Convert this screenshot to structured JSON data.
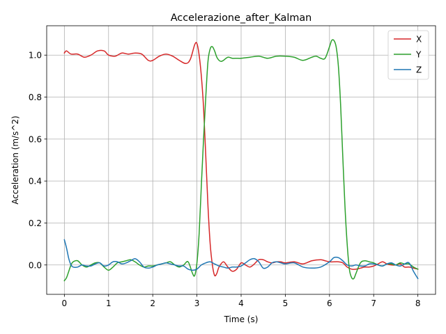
{
  "chart_data": {
    "type": "line",
    "title": "Accelerazione_after_Kalman",
    "xlabel": "Time (s)",
    "ylabel": "Acceleration (m/s^2)",
    "xlim": [
      -0.4,
      8.4
    ],
    "ylim": [
      -0.14,
      1.14
    ],
    "xticks": [
      0,
      1,
      2,
      3,
      4,
      5,
      6,
      7,
      8
    ],
    "xtick_labels": [
      "0",
      "1",
      "2",
      "3",
      "4",
      "5",
      "6",
      "7",
      "8"
    ],
    "yticks": [
      0.0,
      0.2,
      0.4,
      0.6,
      0.8,
      1.0
    ],
    "ytick_labels": [
      "0.0",
      "0.2",
      "0.4",
      "0.6",
      "0.8",
      "1.0"
    ],
    "grid": true,
    "legend_position": "upper right",
    "series": [
      {
        "name": "X",
        "color": "#d62728",
        "x": [
          0,
          0.05,
          0.15,
          0.3,
          0.45,
          0.6,
          0.75,
          0.9,
          1.0,
          1.15,
          1.3,
          1.45,
          1.6,
          1.75,
          1.9,
          2.0,
          2.15,
          2.3,
          2.45,
          2.6,
          2.75,
          2.85,
          2.95,
          3.0,
          3.05,
          3.1,
          3.15,
          3.2,
          3.25,
          3.3,
          3.35,
          3.4,
          3.45,
          3.5,
          3.6,
          3.7,
          3.8,
          3.9,
          4.0,
          4.1,
          4.2,
          4.3,
          4.4,
          4.5,
          4.6,
          4.7,
          4.8,
          4.9,
          5.0,
          5.2,
          5.4,
          5.6,
          5.8,
          5.9,
          6.0,
          6.1,
          6.2,
          6.3,
          6.4,
          6.5,
          6.6,
          6.7,
          6.8,
          6.9,
          7.0,
          7.1,
          7.2,
          7.3,
          7.4,
          7.5,
          7.6,
          7.7,
          7.8,
          7.9,
          8.0
        ],
        "y": [
          1.01,
          1.02,
          1.005,
          1.005,
          0.99,
          1.0,
          1.02,
          1.02,
          1.0,
          0.995,
          1.01,
          1.005,
          1.01,
          1.005,
          0.975,
          0.975,
          0.995,
          1.005,
          0.995,
          0.975,
          0.96,
          0.98,
          1.05,
          1.055,
          1.0,
          0.9,
          0.75,
          0.52,
          0.28,
          0.1,
          0.0,
          -0.05,
          -0.04,
          -0.01,
          0.015,
          -0.01,
          -0.03,
          -0.02,
          0.01,
          0.0,
          -0.01,
          0.005,
          0.025,
          0.025,
          0.015,
          0.01,
          0.015,
          0.015,
          0.01,
          0.015,
          0.005,
          0.02,
          0.025,
          0.02,
          0.015,
          0.015,
          0.015,
          0.01,
          -0.01,
          -0.02,
          -0.02,
          -0.015,
          -0.01,
          -0.01,
          -0.005,
          0.005,
          0.015,
          0.005,
          0.0,
          0.0,
          0.005,
          -0.01,
          -0.01,
          -0.015,
          -0.02
        ]
      },
      {
        "name": "Y",
        "color": "#2ca02c",
        "x": [
          0,
          0.05,
          0.1,
          0.15,
          0.2,
          0.3,
          0.4,
          0.5,
          0.6,
          0.7,
          0.8,
          0.9,
          1.0,
          1.1,
          1.2,
          1.3,
          1.4,
          1.5,
          1.6,
          1.7,
          1.8,
          1.9,
          2.0,
          2.1,
          2.2,
          2.3,
          2.4,
          2.5,
          2.6,
          2.7,
          2.8,
          2.9,
          2.95,
          3.0,
          3.05,
          3.1,
          3.15,
          3.2,
          3.25,
          3.3,
          3.35,
          3.4,
          3.45,
          3.5,
          3.55,
          3.6,
          3.7,
          3.8,
          3.9,
          4.0,
          4.2,
          4.4,
          4.6,
          4.8,
          5.0,
          5.2,
          5.4,
          5.6,
          5.7,
          5.8,
          5.9,
          6.0,
          6.05,
          6.1,
          6.15,
          6.2,
          6.25,
          6.3,
          6.35,
          6.4,
          6.45,
          6.5,
          6.55,
          6.6,
          6.7,
          6.8,
          6.9,
          7.0,
          7.1,
          7.2,
          7.3,
          7.4,
          7.5,
          7.6,
          7.7,
          7.8,
          7.9,
          8.0
        ],
        "y": [
          -0.075,
          -0.06,
          -0.03,
          0.0,
          0.015,
          0.02,
          0.0,
          -0.01,
          0.0,
          0.01,
          0.01,
          -0.01,
          -0.025,
          -0.01,
          0.01,
          0.015,
          0.02,
          0.025,
          0.015,
          0.0,
          -0.01,
          -0.005,
          -0.005,
          0.0,
          0.005,
          0.01,
          0.015,
          0.0,
          -0.01,
          0.0,
          0.015,
          -0.04,
          -0.05,
          0.01,
          0.15,
          0.38,
          0.6,
          0.8,
          0.97,
          1.03,
          1.04,
          1.02,
          0.99,
          0.975,
          0.97,
          0.975,
          0.99,
          0.985,
          0.985,
          0.985,
          0.99,
          0.995,
          0.985,
          0.995,
          0.995,
          0.99,
          0.975,
          0.99,
          0.995,
          0.985,
          0.985,
          1.04,
          1.07,
          1.07,
          1.04,
          0.95,
          0.77,
          0.52,
          0.28,
          0.1,
          -0.02,
          -0.06,
          -0.065,
          -0.04,
          0.01,
          0.02,
          0.015,
          0.01,
          0.0,
          -0.005,
          0.005,
          0.005,
          0.0,
          0.01,
          0.005,
          0.005,
          -0.01,
          -0.02
        ]
      },
      {
        "name": "Z",
        "color": "#1f77b4",
        "x": [
          0,
          0.05,
          0.1,
          0.15,
          0.2,
          0.3,
          0.4,
          0.5,
          0.6,
          0.7,
          0.8,
          0.9,
          1.0,
          1.1,
          1.2,
          1.3,
          1.4,
          1.5,
          1.6,
          1.7,
          1.8,
          1.9,
          2.0,
          2.1,
          2.2,
          2.3,
          2.4,
          2.5,
          2.6,
          2.7,
          2.8,
          2.9,
          3.0,
          3.1,
          3.2,
          3.3,
          3.4,
          3.5,
          3.6,
          3.7,
          3.8,
          3.9,
          4.0,
          4.1,
          4.2,
          4.3,
          4.4,
          4.5,
          4.6,
          4.7,
          4.8,
          4.9,
          5.0,
          5.2,
          5.4,
          5.6,
          5.8,
          6.0,
          6.1,
          6.2,
          6.3,
          6.4,
          6.5,
          6.6,
          6.7,
          6.8,
          6.9,
          7.0,
          7.1,
          7.2,
          7.3,
          7.4,
          7.5,
          7.6,
          7.7,
          7.8,
          7.9,
          8.0
        ],
        "y": [
          0.12,
          0.08,
          0.03,
          0.0,
          -0.01,
          -0.01,
          0.0,
          -0.005,
          -0.005,
          0.005,
          0.01,
          -0.005,
          0.0,
          0.015,
          0.015,
          0.005,
          0.01,
          0.02,
          0.03,
          0.015,
          -0.01,
          -0.015,
          -0.01,
          0.0,
          0.005,
          0.01,
          0.005,
          0.0,
          -0.005,
          -0.005,
          -0.02,
          -0.025,
          -0.02,
          0.0,
          0.01,
          0.015,
          0.005,
          -0.005,
          -0.01,
          -0.015,
          -0.01,
          -0.01,
          -0.005,
          0.01,
          0.025,
          0.03,
          0.015,
          -0.015,
          -0.01,
          0.01,
          0.015,
          0.01,
          0.005,
          0.01,
          -0.01,
          -0.015,
          -0.01,
          0.015,
          0.035,
          0.035,
          0.02,
          0.0,
          -0.005,
          0.0,
          -0.005,
          -0.005,
          0.005,
          0.005,
          0.0,
          -0.005,
          0.005,
          0.01,
          0.0,
          -0.005,
          0.005,
          0.01,
          -0.03,
          -0.065
        ]
      }
    ]
  }
}
